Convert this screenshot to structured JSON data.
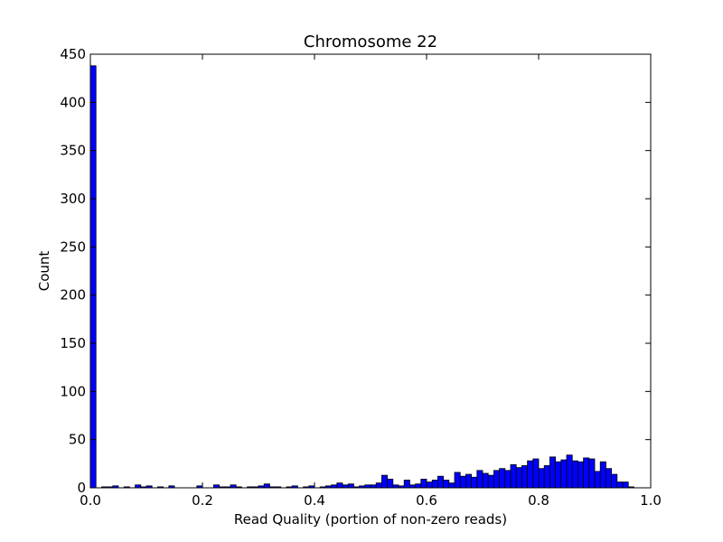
{
  "chart_data": {
    "type": "bar",
    "title": "Chromosome 22",
    "xlabel": "Read Quality (portion of non-zero reads)",
    "ylabel": "Count",
    "xlim": [
      0,
      1
    ],
    "ylim": [
      0,
      450
    ],
    "bin_width": 0.01,
    "x_ticks": [
      "0.0",
      "0.2",
      "0.4",
      "0.6",
      "0.8",
      "1.0"
    ],
    "y_ticks": [
      "0",
      "50",
      "100",
      "150",
      "200",
      "250",
      "300",
      "350",
      "400",
      "450"
    ],
    "grid": false,
    "bar_color": "#0000ff",
    "edge_color": "#000000",
    "series": [
      {
        "bin_starts": [
          0.0,
          0.01,
          0.02,
          0.03,
          0.04,
          0.05,
          0.06,
          0.07,
          0.08,
          0.09,
          0.1,
          0.11,
          0.12,
          0.13,
          0.14,
          0.15,
          0.16,
          0.17,
          0.18,
          0.19,
          0.2,
          0.21,
          0.22,
          0.23,
          0.24,
          0.25,
          0.26,
          0.27,
          0.28,
          0.29,
          0.3,
          0.31,
          0.32,
          0.33,
          0.34,
          0.35,
          0.36,
          0.37,
          0.38,
          0.39,
          0.4,
          0.41,
          0.42,
          0.43,
          0.44,
          0.45,
          0.46,
          0.47,
          0.48,
          0.49,
          0.5,
          0.51,
          0.52,
          0.53,
          0.54,
          0.55,
          0.56,
          0.57,
          0.58,
          0.59,
          0.6,
          0.61,
          0.62,
          0.63,
          0.64,
          0.65,
          0.66,
          0.67,
          0.68,
          0.69,
          0.7,
          0.71,
          0.72,
          0.73,
          0.74,
          0.75,
          0.76,
          0.77,
          0.78,
          0.79,
          0.8,
          0.81,
          0.82,
          0.83,
          0.84,
          0.85,
          0.86,
          0.87,
          0.88,
          0.89,
          0.9,
          0.91,
          0.92,
          0.93,
          0.94,
          0.95,
          0.96,
          0.97,
          0.98,
          0.99
        ],
        "values": [
          438,
          0,
          1,
          1,
          2,
          0,
          1,
          0,
          3,
          1,
          2,
          0,
          1,
          0,
          2,
          0,
          0,
          0,
          0,
          2,
          0,
          0,
          3,
          1,
          1,
          3,
          1,
          0,
          1,
          1,
          2,
          4,
          1,
          1,
          0,
          1,
          2,
          0,
          1,
          2,
          0,
          1,
          2,
          3,
          5,
          3,
          4,
          1,
          2,
          3,
          3,
          5,
          13,
          9,
          3,
          2,
          8,
          3,
          4,
          9,
          6,
          8,
          12,
          8,
          5,
          16,
          12,
          14,
          11,
          18,
          15,
          13,
          18,
          20,
          18,
          24,
          21,
          23,
          28,
          30,
          20,
          23,
          32,
          27,
          29,
          34,
          28,
          27,
          31,
          30,
          17,
          27,
          20,
          14,
          6,
          6,
          1,
          0,
          0,
          0
        ]
      }
    ]
  }
}
